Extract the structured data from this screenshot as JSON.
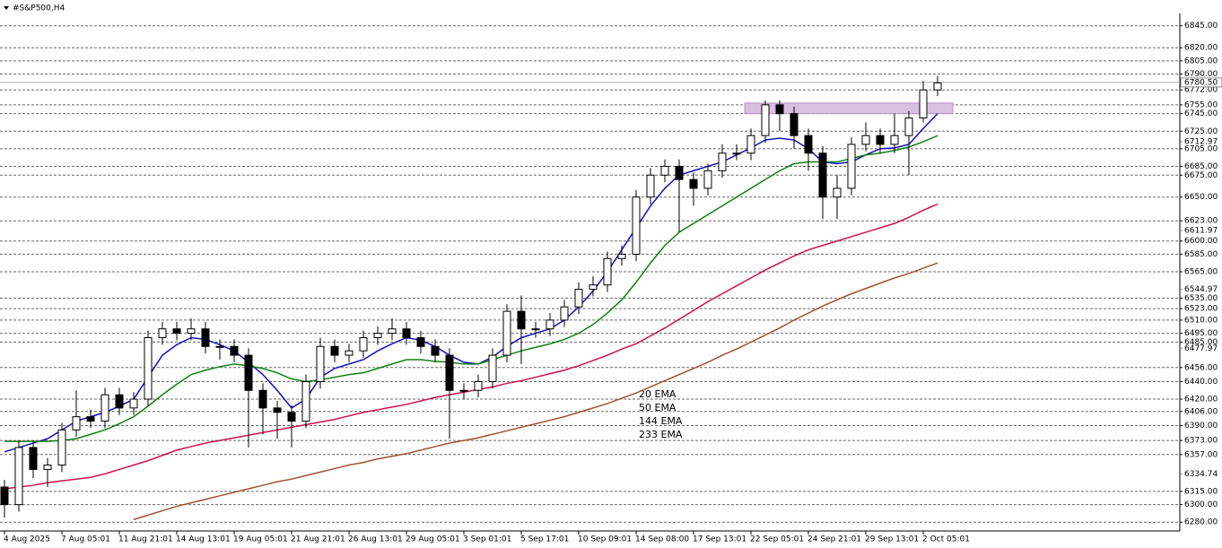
{
  "chart_data": {
    "type": "candlestick",
    "title": "#S&P500,H4",
    "categories": [
      "4 Aug 2025",
      null,
      null,
      null,
      "7 Aug 05:01",
      null,
      null,
      null,
      "11 Aug 21:01",
      null,
      null,
      null,
      "14 Aug 13:01",
      null,
      null,
      null,
      "19 Aug 05:01",
      null,
      null,
      null,
      "21 Aug 21:01",
      null,
      null,
      null,
      "26 Aug 13:01",
      null,
      null,
      null,
      "29 Aug 05:01",
      null,
      null,
      null,
      "3 Sep 01:01",
      null,
      null,
      null,
      "5 Sep 17:01",
      null,
      null,
      null,
      "10 Sep 09:01",
      null,
      null,
      null,
      "14 Sep 08:00",
      null,
      null,
      null,
      "17 Sep 13:01",
      null,
      null,
      null,
      "22 Sep 05:01",
      null,
      null,
      null,
      "24 Sep 21:01",
      null,
      null,
      null,
      "29 Sep 13:01",
      null,
      null,
      null,
      "2 Oct 05:01",
      null
    ],
    "open": [
      6320,
      6300,
      6365,
      6340,
      6345,
      6385,
      6400,
      6395,
      6425,
      6410,
      6420,
      6490,
      6500,
      6495,
      6500,
      6480,
      6480,
      6470,
      6430,
      6410,
      6405,
      6395,
      6440,
      6480,
      6470,
      6475,
      6490,
      6495,
      6500,
      6490,
      6480,
      6470,
      6430,
      6430,
      6440,
      6470,
      6520,
      6500,
      6500,
      6510,
      6525,
      6545,
      6550,
      6580,
      6585,
      6650,
      6675,
      6685,
      6670,
      6660,
      6680,
      6700,
      6700,
      6720,
      6755,
      6745,
      6720,
      6700,
      6650,
      6660,
      6710,
      6720,
      6710,
      6720,
      6740,
      6772
    ],
    "high": [
      6328,
      6373,
      6373,
      6353,
      6393,
      6430,
      6408,
      6433,
      6433,
      6428,
      6498,
      6508,
      6508,
      6512,
      6508,
      6488,
      6488,
      6478,
      6438,
      6418,
      6413,
      6448,
      6490,
      6488,
      6483,
      6498,
      6503,
      6512,
      6508,
      6498,
      6488,
      6478,
      6438,
      6448,
      6478,
      6528,
      6538,
      6508,
      6518,
      6533,
      6553,
      6560,
      6588,
      6595,
      6658,
      6683,
      6693,
      6693,
      6678,
      6688,
      6710,
      6710,
      6728,
      6760,
      6760,
      6753,
      6728,
      6708,
      6675,
      6718,
      6735,
      6728,
      6745,
      6748,
      6782,
      6788
    ],
    "low": [
      6285,
      6292,
      6330,
      6320,
      6337,
      6377,
      6387,
      6387,
      6402,
      6402,
      6412,
      6482,
      6487,
      6487,
      6472,
      6465,
      6462,
      6365,
      6380,
      6375,
      6365,
      6387,
      6432,
      6462,
      6462,
      6467,
      6482,
      6487,
      6482,
      6472,
      6462,
      6375,
      6420,
      6422,
      6432,
      6462,
      6460,
      6490,
      6492,
      6502,
      6517,
      6537,
      6542,
      6572,
      6577,
      6642,
      6667,
      6610,
      6640,
      6652,
      6672,
      6692,
      6692,
      6712,
      6725,
      6705,
      6680,
      6625,
      6625,
      6652,
      6702,
      6700,
      6700,
      6675,
      6735,
      6765
    ],
    "close": [
      6300,
      6365,
      6340,
      6345,
      6385,
      6400,
      6395,
      6425,
      6410,
      6420,
      6490,
      6500,
      6495,
      6500,
      6480,
      6480,
      6470,
      6430,
      6410,
      6405,
      6395,
      6440,
      6480,
      6470,
      6475,
      6490,
      6495,
      6500,
      6490,
      6480,
      6470,
      6430,
      6430,
      6440,
      6470,
      6520,
      6500,
      6500,
      6510,
      6525,
      6545,
      6550,
      6580,
      6585,
      6650,
      6675,
      6685,
      6670,
      6660,
      6680,
      6700,
      6700,
      6720,
      6755,
      6745,
      6720,
      6700,
      6650,
      6660,
      6710,
      6720,
      6710,
      6720,
      6740,
      6772,
      6780
    ],
    "series": [
      {
        "name": "20 EMA",
        "color": "#1010c0",
        "values": [
          6360,
          6365,
          6370,
          6375,
          6385,
          6395,
          6400,
          6405,
          6412,
          6420,
          6445,
          6470,
          6482,
          6490,
          6488,
          6482,
          6475,
          6462,
          6448,
          6430,
          6410,
          6420,
          6445,
          6455,
          6460,
          6465,
          6475,
          6483,
          6490,
          6487,
          6480,
          6470,
          6462,
          6460,
          6468,
          6480,
          6490,
          6495,
          6500,
          6510,
          6525,
          6543,
          6565,
          6590,
          6615,
          6640,
          6660,
          6675,
          6680,
          6685,
          6690,
          6698,
          6706,
          6715,
          6717,
          6715,
          6705,
          6690,
          6688,
          6690,
          6698,
          6705,
          6706,
          6710,
          6728,
          6745
        ]
      },
      {
        "name": "50 EMA",
        "color": "#108010",
        "values": [
          6372,
          6372,
          6372,
          6372,
          6373,
          6375,
          6380,
          6385,
          6392,
          6400,
          6412,
          6425,
          6437,
          6448,
          6453,
          6457,
          6460,
          6458,
          6455,
          6450,
          6443,
          6440,
          6442,
          6445,
          6448,
          6450,
          6455,
          6460,
          6465,
          6465,
          6463,
          6462,
          6460,
          6460,
          6465,
          6470,
          6475,
          6479,
          6483,
          6488,
          6495,
          6505,
          6518,
          6533,
          6553,
          6575,
          6595,
          6610,
          6620,
          6630,
          6640,
          6650,
          6660,
          6670,
          6680,
          6688,
          6690,
          6690,
          6690,
          6694,
          6698,
          6700,
          6703,
          6707,
          6713,
          6720
        ]
      },
      {
        "name": "144 EMA",
        "color": "#d0104c",
        "values": [
          6318,
          6320,
          6322,
          6325,
          6327,
          6329,
          6331,
          6335,
          6340,
          6345,
          6350,
          6356,
          6362,
          6366,
          6370,
          6373,
          6376,
          6379,
          6382,
          6385,
          6388,
          6391,
          6394,
          6397,
          6401,
          6405,
          6408,
          6411,
          6414,
          6418,
          6422,
          6425,
          6428,
          6431,
          6434,
          6438,
          6441,
          6445,
          6449,
          6453,
          6458,
          6464,
          6470,
          6477,
          6483,
          6492,
          6501,
          6511,
          6521,
          6531,
          6540,
          6549,
          6558,
          6567,
          6575,
          6583,
          6590,
          6595,
          6600,
          6605,
          6610,
          6615,
          6620,
          6627,
          6635,
          6642
        ]
      },
      {
        "name": "233 EMA",
        "color": "#a0522d",
        "values": [
          null,
          null,
          null,
          null,
          null,
          null,
          null,
          null,
          null,
          6283,
          6288,
          6293,
          6298,
          6302,
          6306,
          6310,
          6314,
          6318,
          6322,
          6326,
          6329,
          6333,
          6337,
          6341,
          6345,
          6348,
          6352,
          6355,
          6358,
          6362,
          6366,
          6370,
          6373,
          6376,
          6380,
          6384,
          6388,
          6392,
          6396,
          6400,
          6405,
          6410,
          6415,
          6421,
          6427,
          6434,
          6441,
          6448,
          6455,
          6462,
          6470,
          6477,
          6485,
          6493,
          6501,
          6510,
          6518,
          6526,
          6533,
          6540,
          6546,
          6552,
          6558,
          6563,
          6569,
          6575
        ]
      }
    ],
    "zone": {
      "from": 6745,
      "to": 6757,
      "color": "#d8c0e0"
    },
    "ylim": [
      6270,
      6859
    ],
    "yticks": [
      {
        "value": 6845,
        "label": "6845.00"
      },
      {
        "value": 6820,
        "label": "6820.00"
      },
      {
        "value": 6805,
        "label": "6805.00"
      },
      {
        "value": 6790,
        "label": "6790.00"
      },
      {
        "value": 6772,
        "label": "6772.00"
      },
      {
        "value": 6755,
        "label": "6755.00"
      },
      {
        "value": 6745,
        "label": "6745.00"
      },
      {
        "value": 6725,
        "label": "6725.00"
      },
      {
        "value": 6705,
        "label": "6705.00"
      },
      {
        "value": 6685,
        "label": "6685.00"
      },
      {
        "value": 6675,
        "label": "6675.00"
      },
      {
        "value": 6650,
        "label": "6650.00"
      },
      {
        "value": 6623,
        "label": "6623.00"
      },
      {
        "value": 6600,
        "label": "6600.00"
      },
      {
        "value": 6585,
        "label": "6585.00"
      },
      {
        "value": 6565,
        "label": "6565.00"
      },
      {
        "value": 6535,
        "label": "6535.00"
      },
      {
        "value": 6523,
        "label": "6523.00"
      },
      {
        "value": 6510,
        "label": "6510.00"
      },
      {
        "value": 6495,
        "label": "6495.00"
      },
      {
        "value": 6485,
        "label": "6485.00"
      },
      {
        "value": 6456,
        "label": "6456.00"
      },
      {
        "value": 6440,
        "label": "6440.00"
      },
      {
        "value": 6420,
        "label": "6420.00"
      },
      {
        "value": 6406,
        "label": "6406.00"
      },
      {
        "value": 6390,
        "label": "6390.00"
      },
      {
        "value": 6373,
        "label": "6373.00"
      },
      {
        "value": 6357,
        "label": "6357.00"
      },
      {
        "value": 6315,
        "label": "6315.00"
      },
      {
        "value": 6300,
        "label": "6300.00"
      },
      {
        "value": 6280,
        "label": "6280.00"
      }
    ],
    "levels": [
      6712.97,
      6611.97,
      6544.97,
      6477.97,
      6334.74
    ],
    "current_price": {
      "value": 6780.5,
      "label": "6780.50"
    },
    "grid": true
  }
}
